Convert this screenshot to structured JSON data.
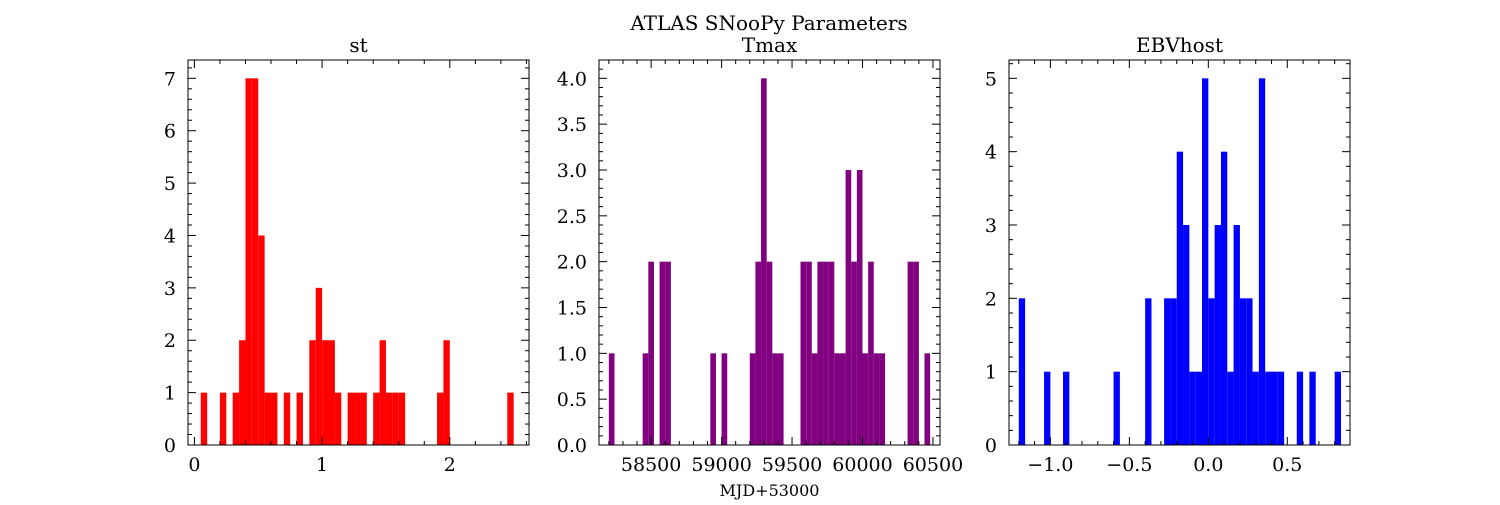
{
  "figure": {
    "suptitle": "ATLAS SNooPy Parameters",
    "colors": {
      "st": "#ff0000",
      "Tmax": "#800080",
      "EBVhost": "#0000ff"
    }
  },
  "chart_data": [
    {
      "type": "bar",
      "title": "st",
      "xlabel": "",
      "ylabel": "",
      "color": "#ff0000",
      "xlim": [
        -0.05,
        2.62
      ],
      "ylim": [
        0,
        7.35
      ],
      "xticks": [
        0,
        1,
        2
      ],
      "xtick_labels": [
        "0",
        "1",
        "2"
      ],
      "yticks": [
        0,
        1,
        2,
        3,
        4,
        5,
        6,
        7
      ],
      "ytick_labels": [
        "0",
        "1",
        "2",
        "3",
        "4",
        "5",
        "6",
        "7"
      ],
      "bin_width": 0.05,
      "bins": [
        {
          "x": 0.075,
          "y": 1
        },
        {
          "x": 0.225,
          "y": 1
        },
        {
          "x": 0.325,
          "y": 1
        },
        {
          "x": 0.375,
          "y": 2
        },
        {
          "x": 0.425,
          "y": 7
        },
        {
          "x": 0.475,
          "y": 7
        },
        {
          "x": 0.525,
          "y": 4
        },
        {
          "x": 0.575,
          "y": 1
        },
        {
          "x": 0.625,
          "y": 1
        },
        {
          "x": 0.725,
          "y": 1
        },
        {
          "x": 0.825,
          "y": 1
        },
        {
          "x": 0.925,
          "y": 2
        },
        {
          "x": 0.975,
          "y": 3
        },
        {
          "x": 1.025,
          "y": 2
        },
        {
          "x": 1.075,
          "y": 2
        },
        {
          "x": 1.125,
          "y": 1
        },
        {
          "x": 1.225,
          "y": 1
        },
        {
          "x": 1.275,
          "y": 1
        },
        {
          "x": 1.325,
          "y": 1
        },
        {
          "x": 1.425,
          "y": 1
        },
        {
          "x": 1.475,
          "y": 2
        },
        {
          "x": 1.525,
          "y": 1
        },
        {
          "x": 1.575,
          "y": 1
        },
        {
          "x": 1.625,
          "y": 1
        },
        {
          "x": 1.925,
          "y": 1
        },
        {
          "x": 1.975,
          "y": 2
        },
        {
          "x": 2.475,
          "y": 1
        }
      ]
    },
    {
      "type": "bar",
      "title": "Tmax",
      "xlabel": "MJD+53000",
      "ylabel": "",
      "color": "#800080",
      "xlim": [
        58130,
        60550
      ],
      "ylim": [
        0,
        4.2
      ],
      "xticks": [
        58500,
        59000,
        59500,
        60000,
        60500
      ],
      "xtick_labels": [
        "58500",
        "59000",
        "59500",
        "60000",
        "60500"
      ],
      "yticks": [
        0,
        0.5,
        1,
        1.5,
        2,
        2.5,
        3,
        3.5,
        4
      ],
      "ytick_labels": [
        "0.0",
        "0.5",
        "1.0",
        "1.5",
        "2.0",
        "2.5",
        "3.0",
        "3.5",
        "4.0"
      ],
      "bin_width": 40,
      "bins": [
        {
          "x": 58220,
          "y": 1
        },
        {
          "x": 58460,
          "y": 1
        },
        {
          "x": 58500,
          "y": 2
        },
        {
          "x": 58580,
          "y": 2
        },
        {
          "x": 58620,
          "y": 2
        },
        {
          "x": 58940,
          "y": 1
        },
        {
          "x": 59020,
          "y": 1
        },
        {
          "x": 59220,
          "y": 1
        },
        {
          "x": 59260,
          "y": 2
        },
        {
          "x": 59300,
          "y": 4
        },
        {
          "x": 59340,
          "y": 2
        },
        {
          "x": 59380,
          "y": 1
        },
        {
          "x": 59420,
          "y": 1
        },
        {
          "x": 59580,
          "y": 2
        },
        {
          "x": 59620,
          "y": 2
        },
        {
          "x": 59660,
          "y": 1
        },
        {
          "x": 59700,
          "y": 2
        },
        {
          "x": 59740,
          "y": 2
        },
        {
          "x": 59780,
          "y": 2
        },
        {
          "x": 59820,
          "y": 1
        },
        {
          "x": 59860,
          "y": 1
        },
        {
          "x": 59900,
          "y": 3
        },
        {
          "x": 59940,
          "y": 2
        },
        {
          "x": 59980,
          "y": 3
        },
        {
          "x": 60020,
          "y": 1
        },
        {
          "x": 60060,
          "y": 2
        },
        {
          "x": 60100,
          "y": 1
        },
        {
          "x": 60140,
          "y": 1
        },
        {
          "x": 60340,
          "y": 2
        },
        {
          "x": 60380,
          "y": 2
        },
        {
          "x": 60460,
          "y": 1
        }
      ]
    },
    {
      "type": "bar",
      "title": "EBVhost",
      "xlabel": "",
      "ylabel": "",
      "color": "#0000ff",
      "xlim": [
        -1.262,
        0.897
      ],
      "ylim": [
        0,
        5.25
      ],
      "xticks": [
        -1.0,
        -0.5,
        0.0,
        0.5
      ],
      "xtick_labels": [
        "−1.0",
        "−0.5",
        "0.0",
        "0.5"
      ],
      "yticks": [
        0,
        1,
        2,
        3,
        4,
        5
      ],
      "ytick_labels": [
        "0",
        "1",
        "2",
        "3",
        "4",
        "5"
      ],
      "bin_width": 0.04,
      "bins": [
        {
          "x": -1.18,
          "y": 2
        },
        {
          "x": -1.02,
          "y": 1
        },
        {
          "x": -0.9,
          "y": 1
        },
        {
          "x": -0.58,
          "y": 1
        },
        {
          "x": -0.38,
          "y": 2
        },
        {
          "x": -0.26,
          "y": 2
        },
        {
          "x": -0.22,
          "y": 2
        },
        {
          "x": -0.18,
          "y": 4
        },
        {
          "x": -0.14,
          "y": 3
        },
        {
          "x": -0.1,
          "y": 1
        },
        {
          "x": -0.06,
          "y": 1
        },
        {
          "x": -0.02,
          "y": 5
        },
        {
          "x": 0.02,
          "y": 2
        },
        {
          "x": 0.06,
          "y": 3
        },
        {
          "x": 0.1,
          "y": 4
        },
        {
          "x": 0.14,
          "y": 1
        },
        {
          "x": 0.18,
          "y": 3
        },
        {
          "x": 0.22,
          "y": 2
        },
        {
          "x": 0.26,
          "y": 2
        },
        {
          "x": 0.3,
          "y": 1
        },
        {
          "x": 0.34,
          "y": 5
        },
        {
          "x": 0.38,
          "y": 1
        },
        {
          "x": 0.42,
          "y": 1
        },
        {
          "x": 0.46,
          "y": 1
        },
        {
          "x": 0.58,
          "y": 1
        },
        {
          "x": 0.66,
          "y": 1
        },
        {
          "x": 0.82,
          "y": 1
        }
      ]
    }
  ]
}
